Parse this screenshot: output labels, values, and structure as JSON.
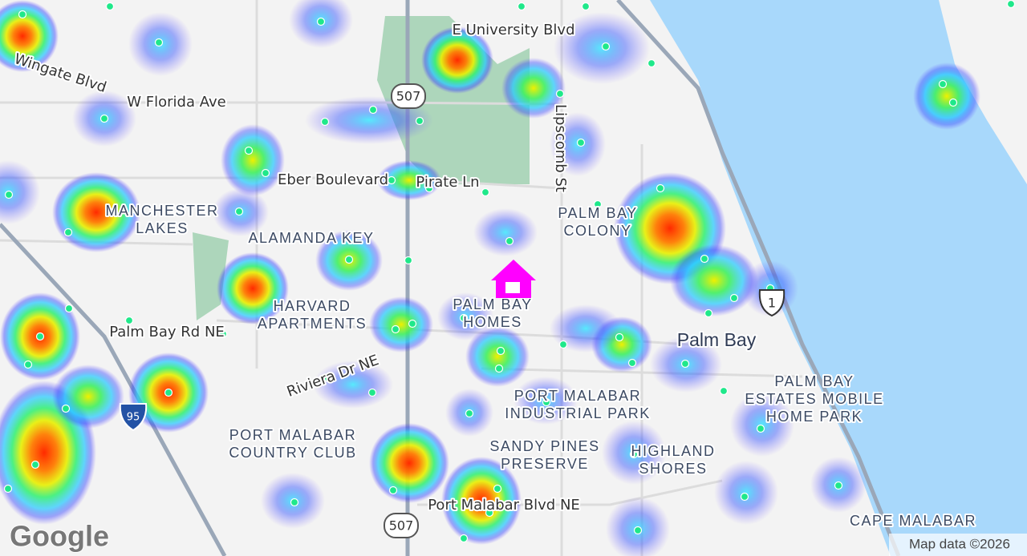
{
  "map": {
    "roads": [
      "E University Blvd",
      "Wingate Blvd",
      "W Florida Ave",
      "Eber Boulevard",
      "Pirate Ln",
      "Lipscomb St",
      "Palm Bay Rd NE",
      "Riviera Dr NE",
      "Port Malabar Blvd NE"
    ],
    "areas": [
      [
        "MANCHESTER",
        "LAKES"
      ],
      [
        "ALAMANDA KEY"
      ],
      [
        "PALM BAY",
        "COLONY"
      ],
      [
        "HARVARD",
        "APARTMENTS"
      ],
      [
        "PALM BAY",
        "HOMES"
      ],
      [
        "PALM BAY",
        "ESTATES MOBILE",
        "HOME PARK"
      ],
      [
        "PORT MALABAR",
        "INDUSTRIAL PARK"
      ],
      [
        "PORT MALABAR",
        "COUNTRY CLUB"
      ],
      [
        "SANDY PINES",
        "PRESERVE"
      ],
      [
        "HIGHLAND",
        "SHORES"
      ],
      [
        "CAPE MALABAR"
      ]
    ],
    "city": "Palm Bay",
    "shields": [
      "507",
      "507",
      "95",
      "1"
    ],
    "logo": "Google",
    "attribution": "Map data ©2026"
  }
}
